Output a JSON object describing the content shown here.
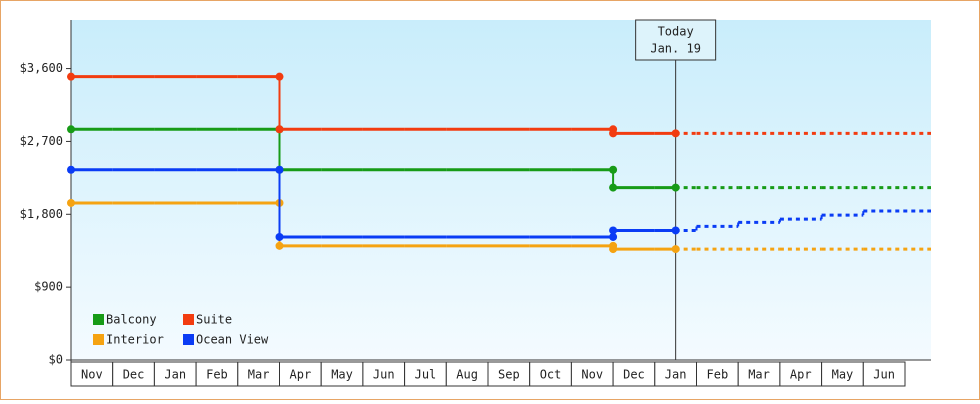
{
  "chart_data": {
    "type": "step",
    "categories": [
      "Nov",
      "Dec",
      "Jan",
      "Feb",
      "Mar",
      "Apr",
      "May",
      "Jun",
      "Jul",
      "Aug",
      "Sep",
      "Oct",
      "Nov",
      "Dec",
      "Jan",
      "Feb",
      "Mar",
      "Apr",
      "May",
      "Jun"
    ],
    "series": [
      {
        "name": "Balcony",
        "color": "#179b17",
        "values": [
          2850,
          2850,
          2850,
          2850,
          2850,
          2350,
          2350,
          2350,
          2350,
          2350,
          2350,
          2350,
          2350,
          2130,
          2130,
          2130,
          2130,
          2130,
          2130,
          2130
        ]
      },
      {
        "name": "Suite",
        "color": "#f23c10",
        "values": [
          3500,
          3500,
          3500,
          3500,
          3500,
          2850,
          2850,
          2850,
          2850,
          2850,
          2850,
          2850,
          2850,
          2800,
          2800,
          2800,
          2800,
          2800,
          2800,
          2800
        ]
      },
      {
        "name": "Interior",
        "color": "#f5a312",
        "values": [
          1940,
          1940,
          1940,
          1940,
          1940,
          1410,
          1410,
          1410,
          1410,
          1410,
          1410,
          1410,
          1410,
          1370,
          1370,
          1370,
          1370,
          1370,
          1370,
          1370
        ]
      },
      {
        "name": "Ocean View",
        "color": "#0a3cf5",
        "values": [
          2350,
          2350,
          2350,
          2350,
          2350,
          1520,
          1520,
          1520,
          1520,
          1520,
          1520,
          1520,
          1520,
          1600,
          1600,
          1650,
          1700,
          1740,
          1790,
          1840
        ]
      }
    ],
    "today": {
      "label": "Today",
      "date": "Jan. 19",
      "category": 14
    },
    "ylim": [
      0,
      4200
    ],
    "yticks": [
      {
        "value": 0,
        "label": "$0"
      },
      {
        "value": 900,
        "label": "$900"
      },
      {
        "value": 1800,
        "label": "$1,800"
      },
      {
        "value": 2700,
        "label": "$2,700"
      },
      {
        "value": 3600,
        "label": "$3,600"
      }
    ],
    "legend": "bottom-left"
  }
}
